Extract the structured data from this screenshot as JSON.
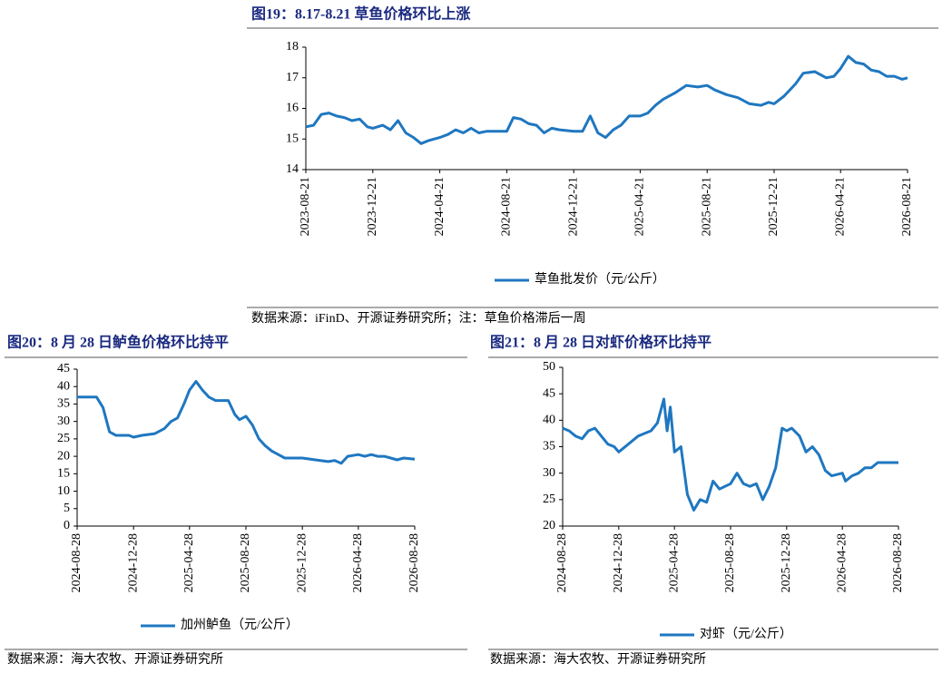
{
  "chart_data": [
    {
      "type": "line",
      "title": "图19：8.17-8.21 草鱼价格环比上涨",
      "source": "数据来源：iFinD、开源证券研究所；注：草鱼价格滞后一周",
      "x": [
        "2023-08-21",
        "2023-09-04",
        "2023-09-18",
        "2023-10-02",
        "2023-10-16",
        "2023-10-30",
        "2023-11-13",
        "2023-11-27",
        "2023-12-11",
        "2023-12-21",
        "2024-01-08",
        "2024-01-22",
        "2024-02-05",
        "2024-02-19",
        "2024-03-04",
        "2024-03-18",
        "2024-04-01",
        "2024-04-21",
        "2024-05-06",
        "2024-05-20",
        "2024-06-03",
        "2024-06-17",
        "2024-07-01",
        "2024-07-15",
        "2024-08-21",
        "2024-09-02",
        "2024-09-16",
        "2024-09-30",
        "2024-10-14",
        "2024-10-28",
        "2024-11-11",
        "2024-11-25",
        "2024-12-21",
        "2025-01-06",
        "2025-01-20",
        "2025-02-03",
        "2025-02-17",
        "2025-03-03",
        "2025-03-17",
        "2025-04-01",
        "2025-04-21",
        "2025-05-05",
        "2025-05-19",
        "2025-06-02",
        "2025-06-23",
        "2025-07-14",
        "2025-08-04",
        "2025-08-21",
        "2025-09-04",
        "2025-09-25",
        "2025-10-16",
        "2025-11-06",
        "2025-11-27",
        "2025-12-11",
        "2025-12-21",
        "2026-01-08",
        "2026-01-29",
        "2026-02-12",
        "2026-03-05",
        "2026-03-26",
        "2026-04-09",
        "2026-04-21",
        "2026-05-05",
        "2026-05-19",
        "2026-06-02",
        "2026-06-16",
        "2026-06-30",
        "2026-07-14",
        "2026-07-28",
        "2026-08-11",
        "2026-08-21"
      ],
      "series": [
        {
          "name": "草鱼批发价（元/公斤）",
          "color": "#1f77c0",
          "values": [
            15.4,
            15.45,
            15.8,
            15.85,
            15.75,
            15.7,
            15.6,
            15.65,
            15.4,
            15.35,
            15.45,
            15.3,
            15.6,
            15.2,
            15.05,
            14.85,
            14.95,
            15.05,
            15.15,
            15.3,
            15.2,
            15.35,
            15.2,
            15.25,
            15.25,
            15.7,
            15.65,
            15.5,
            15.45,
            15.2,
            15.35,
            15.3,
            15.25,
            15.25,
            15.75,
            15.2,
            15.05,
            15.3,
            15.45,
            15.75,
            15.75,
            15.85,
            16.1,
            16.3,
            16.5,
            16.75,
            16.7,
            16.75,
            16.6,
            16.45,
            16.35,
            16.15,
            16.1,
            16.2,
            16.15,
            16.4,
            16.8,
            17.15,
            17.2,
            17.0,
            17.05,
            17.3,
            17.7,
            17.5,
            17.45,
            17.25,
            17.2,
            17.05,
            17.05,
            16.95,
            17.0
          ]
        }
      ],
      "xlim": [
        "2023-08-21",
        "2026-08-21"
      ],
      "xticks": [
        "2023-08-21",
        "2023-12-21",
        "2024-04-21",
        "2024-08-21",
        "2024-12-21",
        "2025-04-21",
        "2025-08-21",
        "2025-12-21",
        "2026-04-21",
        "2026-08-21"
      ],
      "ylim": [
        14,
        18
      ],
      "yticks": [
        14,
        15,
        16,
        17,
        18
      ]
    },
    {
      "type": "line",
      "title": "图20：8 月 28 日鲈鱼价格环比持平",
      "source": "数据来源：海大农牧、开源证券研究所",
      "x": [
        "2024-08-28",
        "2024-09-25",
        "2024-10-09",
        "2024-10-23",
        "2024-11-06",
        "2024-11-20",
        "2024-12-18",
        "2024-12-28",
        "2025-01-15",
        "2025-02-12",
        "2025-03-05",
        "2025-03-19",
        "2025-04-02",
        "2025-04-16",
        "2025-04-28",
        "2025-05-12",
        "2025-05-26",
        "2025-06-09",
        "2025-06-23",
        "2025-07-21",
        "2025-08-04",
        "2025-08-14",
        "2025-08-28",
        "2025-09-11",
        "2025-09-25",
        "2025-10-09",
        "2025-10-23",
        "2025-11-06",
        "2025-11-20",
        "2025-12-28",
        "2026-01-25",
        "2026-02-22",
        "2026-03-08",
        "2026-03-22",
        "2026-04-05",
        "2026-04-28",
        "2026-05-12",
        "2026-05-26",
        "2026-06-09",
        "2026-06-23",
        "2026-07-07",
        "2026-07-21",
        "2026-08-04",
        "2026-08-28"
      ],
      "series": [
        {
          "name": "加州鲈鱼（元/公斤）",
          "color": "#1f77c0",
          "values": [
            37,
            37,
            37,
            34,
            27,
            26,
            26,
            25.5,
            26,
            26.5,
            28,
            30,
            31,
            35,
            39,
            41.5,
            39,
            37,
            36,
            36,
            32,
            30.5,
            31.5,
            29,
            25,
            23,
            21.5,
            20.5,
            19.5,
            19.5,
            19,
            18.5,
            18.8,
            18,
            20,
            20.5,
            20,
            20.5,
            20,
            20,
            19.5,
            19,
            19.5,
            19.2
          ]
        }
      ],
      "xlim": [
        "2024-08-28",
        "2026-08-28"
      ],
      "xticks": [
        "2024-08-28",
        "2024-12-28",
        "2025-04-28",
        "2025-08-28",
        "2025-12-28",
        "2026-04-28",
        "2026-08-28"
      ],
      "ylim": [
        0,
        45
      ],
      "yticks": [
        0,
        5,
        10,
        15,
        20,
        25,
        30,
        35,
        40,
        45
      ]
    },
    {
      "type": "line",
      "title": "图21：8 月 28 日对虾价格环比持平",
      "source": "数据来源：海大农牧、开源证券研究所",
      "x": [
        "2024-08-28",
        "2024-09-11",
        "2024-09-25",
        "2024-10-09",
        "2024-10-23",
        "2024-11-06",
        "2024-11-20",
        "2024-12-04",
        "2024-12-18",
        "2024-12-28",
        "2025-01-25",
        "2025-02-08",
        "2025-02-22",
        "2025-03-08",
        "2025-03-22",
        "2025-04-05",
        "2025-04-12",
        "2025-04-19",
        "2025-04-28",
        "2025-05-12",
        "2025-05-26",
        "2025-06-09",
        "2025-06-23",
        "2025-07-07",
        "2025-07-21",
        "2025-08-04",
        "2025-08-28",
        "2025-09-11",
        "2025-09-25",
        "2025-10-09",
        "2025-10-23",
        "2025-11-06",
        "2025-11-20",
        "2025-12-04",
        "2025-12-18",
        "2025-12-28",
        "2026-01-08",
        "2026-01-25",
        "2026-02-08",
        "2026-02-22",
        "2026-03-08",
        "2026-03-22",
        "2026-04-05",
        "2026-04-28",
        "2026-05-05",
        "2026-05-19",
        "2026-06-02",
        "2026-06-16",
        "2026-06-30",
        "2026-07-14",
        "2026-08-28"
      ],
      "series": [
        {
          "name": "对虾（元/公斤）",
          "color": "#1f77c0",
          "values": [
            38.5,
            38,
            37,
            36.5,
            38,
            38.5,
            37,
            35.5,
            35,
            34,
            36,
            37,
            37.5,
            38,
            39.5,
            44,
            38,
            42.5,
            34,
            35,
            26,
            23,
            25,
            24.5,
            28.5,
            27,
            28,
            30,
            28,
            27.5,
            28,
            25,
            27.5,
            31,
            38.5,
            38,
            38.5,
            37,
            34,
            35,
            33.5,
            30.5,
            29.5,
            30,
            28.5,
            29.5,
            30,
            31,
            31,
            32,
            32
          ]
        }
      ],
      "xlim": [
        "2024-08-28",
        "2026-08-28"
      ],
      "xticks": [
        "2024-08-28",
        "2024-12-28",
        "2025-04-28",
        "2025-08-28",
        "2025-12-28",
        "2026-04-28",
        "2026-08-28"
      ],
      "ylim": [
        20,
        50
      ],
      "yticks": [
        20,
        25,
        30,
        35,
        40,
        45,
        50
      ]
    }
  ]
}
